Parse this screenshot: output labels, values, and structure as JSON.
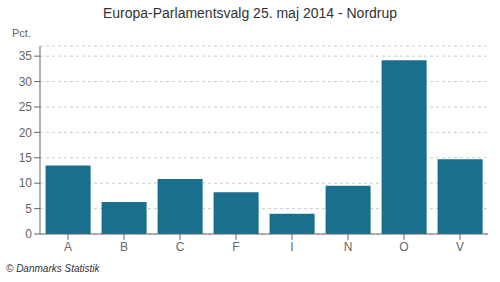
{
  "chart_data": {
    "type": "bar",
    "title": "Europa-Parlamentsvalg 25. maj 2014 - Nordrup",
    "ylabel": "Pct.",
    "categories": [
      "A",
      "B",
      "C",
      "F",
      "I",
      "N",
      "O",
      "V"
    ],
    "values": [
      13.5,
      6.3,
      10.8,
      8.2,
      4.0,
      9.5,
      34.2,
      14.7
    ],
    "color": "#1a6e8e",
    "ylim": [
      0,
      37
    ],
    "yticks": [
      0,
      5,
      10,
      15,
      20,
      25,
      30,
      35
    ],
    "grid": true,
    "annotations": [
      "© Danmarks Statistik"
    ]
  }
}
